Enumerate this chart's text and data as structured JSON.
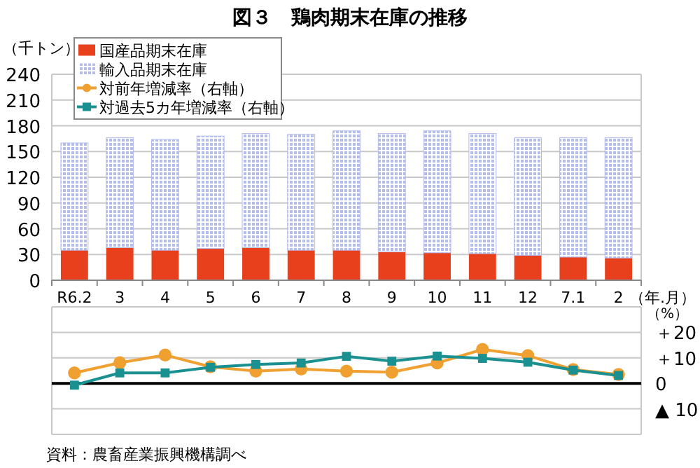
{
  "chart_data": [
    {
      "type": "bar",
      "title": "図３　鶏肉期末在庫の推移",
      "ylabel": "（千トン）",
      "xlabel": "（年.月）",
      "stacked": true,
      "categories": [
        "R6.2",
        "3",
        "4",
        "5",
        "6",
        "7",
        "8",
        "9",
        "10",
        "11",
        "12",
        "7.1",
        "2"
      ],
      "series": [
        {
          "name": "国産品期末在庫",
          "color": "#e8401c",
          "values": [
            35,
            38,
            35,
            37,
            38,
            35,
            35,
            33,
            32,
            31,
            29,
            27,
            26
          ]
        },
        {
          "name": "輸入品期末在庫",
          "color": "#b4bcec",
          "values": [
            125,
            128,
            129,
            131,
            133,
            135,
            139,
            138,
            142,
            140,
            137,
            139,
            140
          ]
        }
      ],
      "ylim": [
        0,
        240
      ],
      "yticks": [
        0,
        30,
        60,
        90,
        120,
        150,
        180,
        210,
        240
      ],
      "grid": "y",
      "legend": "top left"
    },
    {
      "type": "line",
      "ylabel": "（%）",
      "annotations": [
        "資料：農畜産業振興機構調べ"
      ],
      "categories": [
        null,
        null,
        null,
        null,
        null,
        null,
        null,
        null,
        null,
        null,
        null,
        null,
        null
      ],
      "series": [
        {
          "name": "対前年増減率（右軸）",
          "color": "#f0a030",
          "marker": "circle",
          "values": [
            4.1,
            8.1,
            11.1,
            6.5,
            4.8,
            5.6,
            4.8,
            4.4,
            8.0,
            13.3,
            10.9,
            5.4,
            3.5
          ]
        },
        {
          "name": "対過去5カ年増減率（右軸）",
          "color": "#1a9090",
          "marker": "square",
          "values": [
            -0.7,
            4.1,
            4.1,
            6.3,
            7.4,
            8.0,
            10.6,
            8.7,
            10.7,
            9.8,
            8.3,
            5.2,
            3.1
          ]
        }
      ],
      "ylim": [
        -20,
        30
      ],
      "yticks": [
        {
          "value": -20,
          "label": null
        },
        {
          "value": -10,
          "label": "▲ 10"
        },
        0,
        {
          "value": 10,
          "label": "＋10"
        },
        {
          "value": 20,
          "label": "＋20"
        },
        {
          "value": 30,
          "label": null
        }
      ],
      "ref_lines": [
        {
          "axis": "y",
          "value": 0,
          "color": "#000000"
        }
      ],
      "grid": "y",
      "tick_labels": "y",
      "legend": "top left"
    }
  ]
}
